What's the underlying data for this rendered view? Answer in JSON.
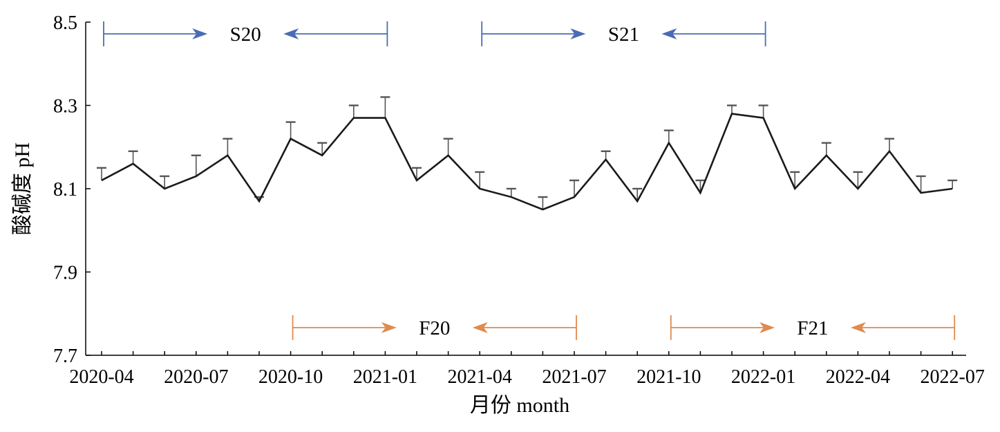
{
  "chart_data": {
    "type": "line",
    "xlabel": "月份 month",
    "ylabel": "酸碱度 pH",
    "ylim": [
      7.7,
      8.5
    ],
    "yticks": [
      "7.7",
      "7.9",
      "8.1",
      "8.3",
      "8.5"
    ],
    "xticks": [
      "2020-04",
      "2020-07",
      "2020-10",
      "2021-01",
      "2021-04",
      "2021-07",
      "2021-10",
      "2022-01",
      "2022-04",
      "2022-07"
    ],
    "x": [
      "2020-04",
      "2020-05",
      "2020-06",
      "2020-07",
      "2020-08",
      "2020-09",
      "2020-10",
      "2020-11",
      "2020-12",
      "2021-01",
      "2021-02",
      "2021-03",
      "2021-04",
      "2021-05",
      "2021-06",
      "2021-07",
      "2021-08",
      "2021-09",
      "2021-10",
      "2021-11",
      "2021-12",
      "2022-01",
      "2022-02",
      "2022-03",
      "2022-04",
      "2022-05",
      "2022-06",
      "2022-07"
    ],
    "series": [
      {
        "values": [
          8.12,
          8.16,
          8.1,
          8.13,
          8.18,
          8.07,
          8.22,
          8.18,
          8.27,
          8.27,
          8.12,
          8.18,
          8.1,
          8.08,
          8.05,
          8.08,
          8.17,
          8.07,
          8.21,
          8.09,
          8.28,
          8.27,
          8.1,
          8.18,
          8.1,
          8.19,
          8.09,
          8.1
        ],
        "errors": [
          0.03,
          0.03,
          0.03,
          0.05,
          0.04,
          0.01,
          0.04,
          0.03,
          0.03,
          0.05,
          0.03,
          0.04,
          0.04,
          0.02,
          0.03,
          0.04,
          0.02,
          0.03,
          0.03,
          0.03,
          0.02,
          0.03,
          0.04,
          0.03,
          0.04,
          0.03,
          0.04,
          0.02
        ],
        "color": "#1a1a1a"
      }
    ],
    "periods": [
      {
        "label": "S20",
        "start": "2020-04",
        "end": "2021-01",
        "row": "top",
        "color": "#4a6bb5"
      },
      {
        "label": "S21",
        "start": "2021-04",
        "end": "2022-01",
        "row": "top",
        "color": "#4a6bb5"
      },
      {
        "label": "F20",
        "start": "2020-10",
        "end": "2021-07",
        "row": "bottom",
        "color": "#e08a4c"
      },
      {
        "label": "F21",
        "start": "2021-10",
        "end": "2022-07",
        "row": "bottom",
        "color": "#e08a4c"
      }
    ],
    "grid": false,
    "legend": "none"
  }
}
